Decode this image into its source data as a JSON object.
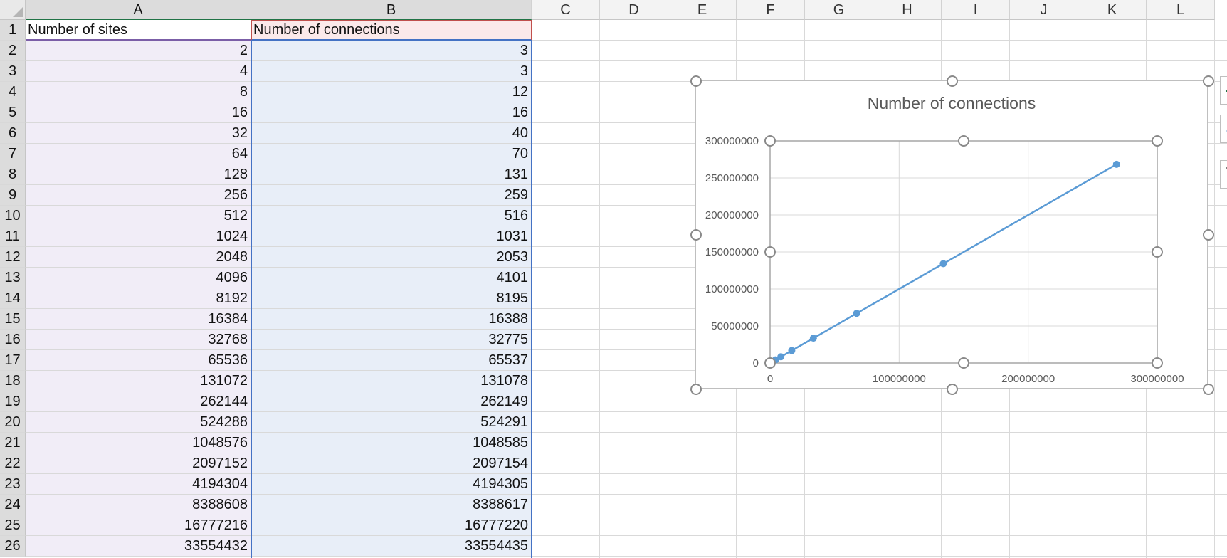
{
  "columns": [
    "A",
    "B",
    "C",
    "D",
    "E",
    "F",
    "G",
    "H",
    "I",
    "J",
    "K",
    "L"
  ],
  "rows": [
    "1",
    "2",
    "3",
    "4",
    "5",
    "6",
    "7",
    "8",
    "9",
    "10",
    "11",
    "12",
    "13",
    "14",
    "15",
    "16",
    "17",
    "18",
    "19",
    "20",
    "21",
    "22",
    "23",
    "24",
    "25",
    "26"
  ],
  "cells": {
    "a1": "Number of sites",
    "b1": "Number of connections",
    "sites": [
      "2",
      "4",
      "8",
      "16",
      "32",
      "64",
      "128",
      "256",
      "512",
      "1024",
      "2048",
      "4096",
      "8192",
      "16384",
      "32768",
      "65536",
      "131072",
      "262144",
      "524288",
      "1048576",
      "2097152",
      "4194304",
      "8388608",
      "16777216",
      "33554432"
    ],
    "connections": [
      "3",
      "3",
      "12",
      "16",
      "40",
      "70",
      "131",
      "259",
      "516",
      "1031",
      "2053",
      "4101",
      "8195",
      "16388",
      "32775",
      "65537",
      "131078",
      "262149",
      "524291",
      "1048585",
      "2097154",
      "4194305",
      "8388617",
      "16777220",
      "33554435"
    ]
  },
  "colors": {
    "series": "#5b9bd5",
    "selection_b": "#4472c4",
    "selection_a": "#7b5ea7",
    "header_accent": "#c0504d"
  },
  "chart_data": {
    "type": "scatter",
    "title": "Number of connections",
    "xlim": [
      0,
      300000000
    ],
    "ylim": [
      0,
      300000000
    ],
    "x_ticks": [
      "0",
      "100000000",
      "200000000",
      "300000000"
    ],
    "y_ticks": [
      "0",
      "50000000",
      "100000000",
      "150000000",
      "200000000",
      "250000000",
      "300000000"
    ],
    "x_tick_values": [
      0,
      100000000,
      200000000,
      300000000
    ],
    "y_tick_values": [
      0,
      50000000,
      100000000,
      150000000,
      200000000,
      250000000,
      300000000
    ],
    "grid": true,
    "series": [
      {
        "x": [
          2,
          4,
          8,
          16,
          32,
          64,
          128,
          256,
          512,
          1024,
          2048,
          4096,
          8192,
          16384,
          32768,
          65536,
          131072,
          262144,
          524288,
          1048576,
          2097152,
          4194304,
          8388608,
          16777216,
          33554432,
          67108864,
          134217728,
          268435456
        ],
        "y": [
          3,
          3,
          12,
          16,
          40,
          70,
          131,
          259,
          516,
          1031,
          2053,
          4101,
          8195,
          16388,
          32775,
          65537,
          131078,
          262149,
          524291,
          1048585,
          2097154,
          4194305,
          8388617,
          16777220,
          33554435,
          67108866,
          134217731,
          268435458
        ]
      }
    ]
  }
}
